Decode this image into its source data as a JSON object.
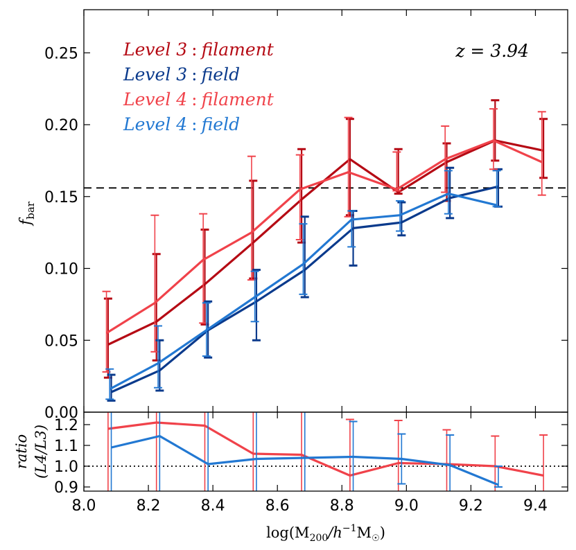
{
  "chart_data": [
    {
      "type": "line",
      "panel": "main",
      "ylabel": "f_bar",
      "ylim": [
        0.0,
        0.28
      ],
      "xlim": [
        8.0,
        9.5
      ],
      "yticks": [
        "0.00",
        "0.05",
        "0.10",
        "0.15",
        "0.20",
        "0.25"
      ],
      "annotation": "z = 3.94",
      "reference_line": {
        "y": 0.156,
        "style": "dashed"
      },
      "series": [
        {
          "name": "Level 3 : filament",
          "color": "#b50a14",
          "x": [
            8.075,
            8.225,
            8.375,
            8.525,
            8.675,
            8.825,
            8.975,
            9.125,
            9.275,
            9.425
          ],
          "values": [
            0.047,
            0.063,
            0.089,
            0.118,
            0.148,
            0.176,
            0.153,
            0.174,
            0.189,
            0.182
          ],
          "err_low": [
            0.024,
            0.036,
            0.061,
            0.093,
            0.118,
            0.137,
            0.152,
            0.147,
            0.175,
            0.163
          ],
          "err_high": [
            0.079,
            0.11,
            0.127,
            0.161,
            0.183,
            0.204,
            0.183,
            0.187,
            0.217,
            0.204
          ]
        },
        {
          "name": "Level 3 : field",
          "color": "#0a3a8c",
          "x": [
            8.085,
            8.235,
            8.385,
            8.535,
            8.685,
            8.835,
            8.985,
            9.135,
            9.285
          ],
          "values": [
            0.014,
            0.029,
            0.057,
            0.077,
            0.099,
            0.128,
            0.132,
            0.149,
            0.157
          ],
          "err_low": [
            0.008,
            0.015,
            0.038,
            0.05,
            0.08,
            0.102,
            0.123,
            0.135,
            0.143
          ],
          "err_high": [
            0.026,
            0.05,
            0.077,
            0.099,
            0.136,
            0.14,
            0.146,
            0.17,
            0.169
          ]
        },
        {
          "name": "Level 4 : filament",
          "color": "#f0424a",
          "x": [
            8.07,
            8.22,
            8.37,
            8.52,
            8.67,
            8.82,
            8.97,
            9.12,
            9.27,
            9.42
          ],
          "values": [
            0.055,
            0.076,
            0.106,
            0.125,
            0.155,
            0.167,
            0.155,
            0.176,
            0.189,
            0.174
          ],
          "err_low": [
            0.028,
            0.042,
            0.062,
            0.092,
            0.12,
            0.136,
            0.154,
            0.153,
            0.169,
            0.151
          ],
          "err_high": [
            0.084,
            0.137,
            0.138,
            0.178,
            0.179,
            0.205,
            0.181,
            0.199,
            0.211,
            0.209
          ]
        },
        {
          "name": "Level 4 : field",
          "color": "#2278d2",
          "x": [
            8.08,
            8.23,
            8.38,
            8.53,
            8.68,
            8.83,
            8.98,
            9.13,
            9.28
          ],
          "values": [
            0.016,
            0.034,
            0.057,
            0.08,
            0.103,
            0.134,
            0.137,
            0.152,
            0.144
          ],
          "err_low": [
            0.009,
            0.017,
            0.039,
            0.063,
            0.082,
            0.115,
            0.126,
            0.138,
            0.143
          ],
          "err_high": [
            0.03,
            0.06,
            0.076,
            0.098,
            0.131,
            0.14,
            0.147,
            0.168,
            0.168
          ]
        }
      ]
    },
    {
      "type": "line",
      "panel": "ratio",
      "ylabel": "ratio (L4/L3)",
      "xlabel": "log(M200/h^-1 M_sun)",
      "ylim": [
        0.88,
        1.26
      ],
      "xlim": [
        8.0,
        9.5
      ],
      "yticks": [
        "0.9",
        "1.0",
        "1.1",
        "1.2"
      ],
      "xticks": [
        "8.0",
        "8.2",
        "8.4",
        "8.6",
        "8.8",
        "9.0",
        "9.2",
        "9.4"
      ],
      "reference_line": {
        "y": 1.0,
        "style": "dotted"
      },
      "series": [
        {
          "name": "filament ratio",
          "color": "#f0424a",
          "x": [
            8.075,
            8.225,
            8.375,
            8.525,
            8.675,
            8.825,
            8.975,
            9.125,
            9.275,
            9.425
          ],
          "values": [
            1.18,
            1.21,
            1.195,
            1.06,
            1.055,
            0.955,
            1.015,
            1.01,
            1.0,
            0.955
          ],
          "err_low": [
            0.88,
            0.88,
            0.88,
            0.88,
            0.88,
            0.88,
            0.88,
            0.88,
            0.88,
            0.88
          ],
          "err_high": [
            1.26,
            1.26,
            1.26,
            1.26,
            1.26,
            1.225,
            1.22,
            1.175,
            1.145,
            1.15
          ]
        },
        {
          "name": "field ratio",
          "color": "#2278d2",
          "x": [
            8.085,
            8.235,
            8.385,
            8.535,
            8.685,
            8.835,
            8.985,
            9.135,
            9.285
          ],
          "values": [
            1.09,
            1.145,
            1.01,
            1.035,
            1.04,
            1.045,
            1.035,
            1.005,
            0.91
          ],
          "err_low": [
            0.88,
            0.88,
            0.88,
            0.88,
            0.88,
            0.88,
            0.915,
            0.88,
            0.9
          ],
          "err_high": [
            1.26,
            1.26,
            1.26,
            1.26,
            1.26,
            1.215,
            1.155,
            1.15,
            1.0
          ]
        }
      ]
    }
  ],
  "legend": {
    "items": [
      {
        "level": "Level 3",
        "kind": "filament",
        "color": "#b50a14"
      },
      {
        "level": "Level 3",
        "kind": "field",
        "color": "#0a3a8c"
      },
      {
        "level": "Level 4",
        "kind": "filament",
        "color": "#f0424a"
      },
      {
        "level": "Level 4",
        "kind": "field",
        "color": "#2278d2"
      }
    ],
    "separator": ":"
  },
  "labels": {
    "redshift": "z = 3.94",
    "ylabel_main": "f",
    "ylabel_main_sub": "bar",
    "ylabel_ratio_line1": "ratio",
    "ylabel_ratio_line2": "(L4/L3)",
    "xlabel_prefix": "log(M",
    "xlabel_sub": "200",
    "xlabel_mid": "/h",
    "xlabel_sup": "−1",
    "xlabel_unit": "M",
    "xlabel_unit_sub": "☉",
    "xlabel_suffix": ")"
  }
}
